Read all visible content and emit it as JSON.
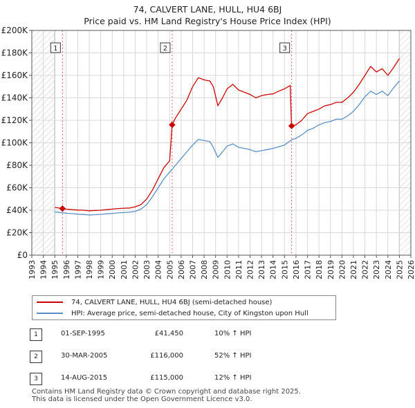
{
  "title": "74, CALVERT LANE, HULL, HU4 6BJ",
  "subtitle": "Price paid vs. HM Land Registry's House Price Index (HPI)",
  "legend": {
    "property": "74, CALVERT LANE, HULL, HU4 6BJ (semi-detached house)",
    "hpi": "HPI: Average price, semi-detached house, City of Kingston upon Hull"
  },
  "sales": [
    {
      "num": "1",
      "date": "01-SEP-1995",
      "price": "£41,450",
      "hpi": "10% ↑ HPI"
    },
    {
      "num": "2",
      "date": "30-MAR-2005",
      "price": "£116,000",
      "hpi": "52% ↑ HPI"
    },
    {
      "num": "3",
      "date": "14-AUG-2015",
      "price": "£115,000",
      "hpi": "12% ↑ HPI"
    }
  ],
  "footer": {
    "line1": "Contains HM Land Registry data © Crown copyright and database right 2025.",
    "line2": "This data is licensed under the Open Government Licence v3.0."
  },
  "colors": {
    "property_line": "#cc0000",
    "hpi_line": "#5b8ec4",
    "hatch": "#c8c8c8",
    "grid": "#d8d8d8",
    "sale_marker_line": "#e06060"
  },
  "chart_data": {
    "type": "line",
    "xlim": [
      1993,
      2026
    ],
    "ylim": [
      0,
      200000
    ],
    "x_ticks": [
      "1993",
      "1994",
      "1995",
      "1996",
      "1997",
      "1998",
      "1999",
      "2000",
      "2001",
      "2002",
      "2003",
      "2004",
      "2005",
      "2006",
      "2007",
      "2008",
      "2009",
      "2010",
      "2011",
      "2012",
      "2013",
      "2014",
      "2015",
      "2016",
      "2017",
      "2018",
      "2019",
      "2020",
      "2021",
      "2022",
      "2023",
      "2024",
      "2025",
      "2026"
    ],
    "y_ticks": [
      {
        "value": 0,
        "label": "£0"
      },
      {
        "value": 20000,
        "label": "£20K"
      },
      {
        "value": 40000,
        "label": "£40K"
      },
      {
        "value": 60000,
        "label": "£60K"
      },
      {
        "value": 80000,
        "label": "£80K"
      },
      {
        "value": 100000,
        "label": "£100K"
      },
      {
        "value": 120000,
        "label": "£120K"
      },
      {
        "value": 140000,
        "label": "£140K"
      },
      {
        "value": 160000,
        "label": "£160K"
      },
      {
        "value": 180000,
        "label": "£180K"
      },
      {
        "value": 200000,
        "label": "£200K"
      }
    ],
    "grid": true,
    "hatched_ranges": [
      [
        1993,
        1995.0
      ],
      [
        2025.0,
        2026
      ]
    ],
    "series": [
      {
        "name": "74, CALVERT LANE, HULL, HU4 6BJ (semi-detached house)",
        "points": [
          [
            1995.0,
            42500
          ],
          [
            1995.67,
            41450
          ],
          [
            1996.0,
            41000
          ],
          [
            1996.5,
            40500
          ],
          [
            1997.0,
            40200
          ],
          [
            1997.5,
            40000
          ],
          [
            1998.0,
            39500
          ],
          [
            1998.5,
            39800
          ],
          [
            1999.0,
            40000
          ],
          [
            1999.5,
            40500
          ],
          [
            2000.0,
            41000
          ],
          [
            2000.5,
            41500
          ],
          [
            2001.0,
            41800
          ],
          [
            2001.5,
            42000
          ],
          [
            2002.0,
            43000
          ],
          [
            2002.5,
            45000
          ],
          [
            2003.0,
            50000
          ],
          [
            2003.5,
            58000
          ],
          [
            2004.0,
            68000
          ],
          [
            2004.5,
            78000
          ],
          [
            2005.0,
            84000
          ],
          [
            2005.22,
            116000
          ],
          [
            2005.5,
            122000
          ],
          [
            2006.0,
            130000
          ],
          [
            2006.5,
            138000
          ],
          [
            2007.0,
            150000
          ],
          [
            2007.5,
            158000
          ],
          [
            2008.0,
            156000
          ],
          [
            2008.5,
            155000
          ],
          [
            2008.8,
            150000
          ],
          [
            2009.2,
            133000
          ],
          [
            2009.6,
            140000
          ],
          [
            2010.0,
            148000
          ],
          [
            2010.5,
            152000
          ],
          [
            2011.0,
            147000
          ],
          [
            2011.5,
            145000
          ],
          [
            2012.0,
            143000
          ],
          [
            2012.5,
            140000
          ],
          [
            2013.0,
            142000
          ],
          [
            2013.5,
            143000
          ],
          [
            2014.0,
            143500
          ],
          [
            2014.5,
            146000
          ],
          [
            2015.0,
            148000
          ],
          [
            2015.5,
            151000
          ],
          [
            2015.6,
            118000
          ],
          [
            2015.62,
            115000
          ],
          [
            2016.0,
            116000
          ],
          [
            2016.5,
            120000
          ],
          [
            2017.0,
            126000
          ],
          [
            2017.5,
            128000
          ],
          [
            2018.0,
            130000
          ],
          [
            2018.5,
            133000
          ],
          [
            2019.0,
            134000
          ],
          [
            2019.5,
            136000
          ],
          [
            2020.0,
            136000
          ],
          [
            2020.5,
            140000
          ],
          [
            2021.0,
            145000
          ],
          [
            2021.5,
            152000
          ],
          [
            2022.0,
            160000
          ],
          [
            2022.5,
            168000
          ],
          [
            2023.0,
            163000
          ],
          [
            2023.5,
            166000
          ],
          [
            2024.0,
            160000
          ],
          [
            2024.5,
            167000
          ],
          [
            2025.0,
            175000
          ]
        ]
      },
      {
        "name": "HPI: Average price, semi-detached house, City of Kingston upon Hull",
        "points": [
          [
            1995.0,
            38500
          ],
          [
            1995.67,
            37700
          ],
          [
            1996.0,
            37300
          ],
          [
            1996.5,
            37000
          ],
          [
            1997.0,
            36500
          ],
          [
            1997.5,
            36200
          ],
          [
            1998.0,
            35800
          ],
          [
            1998.5,
            36000
          ],
          [
            1999.0,
            36300
          ],
          [
            1999.5,
            36800
          ],
          [
            2000.0,
            37200
          ],
          [
            2000.5,
            37600
          ],
          [
            2001.0,
            37900
          ],
          [
            2001.5,
            38200
          ],
          [
            2002.0,
            39000
          ],
          [
            2002.5,
            41000
          ],
          [
            2003.0,
            45000
          ],
          [
            2003.5,
            52000
          ],
          [
            2004.0,
            60000
          ],
          [
            2004.5,
            68000
          ],
          [
            2005.0,
            74000
          ],
          [
            2005.22,
            76300
          ],
          [
            2005.5,
            80000
          ],
          [
            2006.0,
            86000
          ],
          [
            2006.5,
            92000
          ],
          [
            2007.0,
            98000
          ],
          [
            2007.5,
            103000
          ],
          [
            2008.0,
            102000
          ],
          [
            2008.5,
            101000
          ],
          [
            2008.8,
            96000
          ],
          [
            2009.2,
            87000
          ],
          [
            2009.6,
            92000
          ],
          [
            2010.0,
            97000
          ],
          [
            2010.5,
            99000
          ],
          [
            2011.0,
            96000
          ],
          [
            2011.5,
            95000
          ],
          [
            2012.0,
            94000
          ],
          [
            2012.5,
            92000
          ],
          [
            2013.0,
            93000
          ],
          [
            2013.5,
            94000
          ],
          [
            2014.0,
            95000
          ],
          [
            2014.5,
            96500
          ],
          [
            2015.0,
            98000
          ],
          [
            2015.62,
            102700
          ],
          [
            2016.0,
            104000
          ],
          [
            2016.5,
            107000
          ],
          [
            2017.0,
            111000
          ],
          [
            2017.5,
            113000
          ],
          [
            2018.0,
            116000
          ],
          [
            2018.5,
            118000
          ],
          [
            2019.0,
            119000
          ],
          [
            2019.5,
            121000
          ],
          [
            2020.0,
            121000
          ],
          [
            2020.5,
            124000
          ],
          [
            2021.0,
            128000
          ],
          [
            2021.5,
            134000
          ],
          [
            2022.0,
            141000
          ],
          [
            2022.5,
            146000
          ],
          [
            2023.0,
            143000
          ],
          [
            2023.5,
            146000
          ],
          [
            2024.0,
            142000
          ],
          [
            2024.5,
            149000
          ],
          [
            2025.0,
            155000
          ]
        ]
      }
    ],
    "sale_markers": [
      {
        "label": "1",
        "x": 1995.67,
        "y": 41450
      },
      {
        "label": "2",
        "x": 2005.22,
        "y": 116000
      },
      {
        "label": "3",
        "x": 2015.62,
        "y": 115000
      }
    ]
  }
}
